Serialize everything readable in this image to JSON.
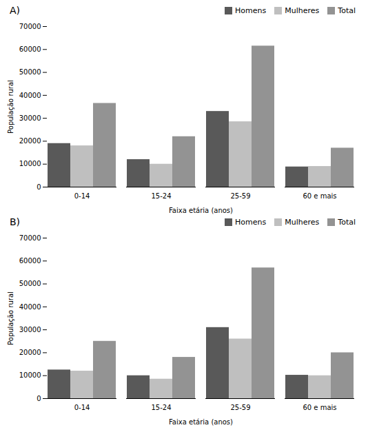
{
  "chart_data": [
    {
      "type": "bar",
      "title": "A)",
      "xlabel": "Faixa etária (anos)",
      "ylabel": "População rural",
      "categories": [
        "0-14",
        "15-24",
        "25-59",
        "60 e mais"
      ],
      "series": [
        {
          "name": "Homens",
          "color": "#595959",
          "values": [
            19000,
            12000,
            33000,
            8800
          ]
        },
        {
          "name": "Mulheres",
          "color": "#bfbfbf",
          "values": [
            18000,
            10000,
            28500,
            9000
          ]
        },
        {
          "name": "Total",
          "color": "#939393",
          "values": [
            36500,
            22000,
            61500,
            17000
          ]
        }
      ],
      "ylim": [
        0,
        70000
      ],
      "yticks": [
        0,
        10000,
        20000,
        30000,
        40000,
        50000,
        60000,
        70000
      ],
      "grid": false,
      "legend": "upper right"
    },
    {
      "type": "bar",
      "title": "B)",
      "xlabel": "Faixa etária (anos)",
      "ylabel": "População rural",
      "categories": [
        "0-14",
        "15-24",
        "25-59",
        "60 e mais"
      ],
      "series": [
        {
          "name": "Homens",
          "color": "#595959",
          "values": [
            12500,
            10000,
            31000,
            10200
          ]
        },
        {
          "name": "Mulheres",
          "color": "#bfbfbf",
          "values": [
            12000,
            8500,
            26000,
            10000
          ]
        },
        {
          "name": "Total",
          "color": "#939393",
          "values": [
            25000,
            18000,
            57000,
            20000
          ]
        }
      ],
      "ylim": [
        0,
        70000
      ],
      "yticks": [
        0,
        10000,
        20000,
        30000,
        40000,
        50000,
        60000,
        70000
      ],
      "grid": false,
      "legend": "upper right"
    }
  ]
}
